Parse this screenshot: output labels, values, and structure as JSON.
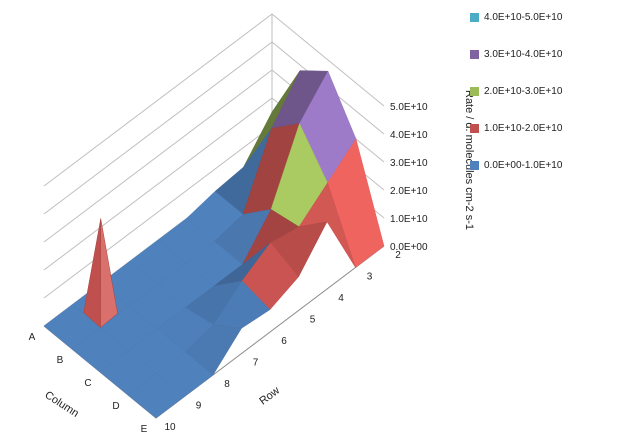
{
  "chart_data": {
    "type": "surface",
    "zlabel": "Rate / d. molecules cm-2 s-1",
    "xlabel": "Column",
    "ylabel": "Row",
    "columns": [
      "A",
      "B",
      "C",
      "D",
      "E"
    ],
    "rows": [
      "2",
      "3",
      "4",
      "5",
      "6",
      "7",
      "8",
      "9",
      "10"
    ],
    "z_ticks": [
      "0.0E+00",
      "1.0E+10",
      "2.0E+10",
      "3.0E+10",
      "4.0E+10",
      "5.0E+10"
    ],
    "zlim": [
      0,
      50000000000
    ],
    "grid": true,
    "legend_position": "right",
    "legend": [
      {
        "label": "4.0E+10-5.0E+10",
        "color": "#4bacc6"
      },
      {
        "label": "3.0E+10-4.0E+10",
        "color": "#8064a2"
      },
      {
        "label": "2.0E+10-3.0E+10",
        "color": "#9bbb59"
      },
      {
        "label": "1.0E+10-2.0E+10",
        "color": "#c0504d"
      },
      {
        "label": "0.0E+00-1.0E+10",
        "color": "#4f81bd"
      }
    ],
    "values_units": "1e10 molecules cm-2 s-1",
    "values": [
      [
        1.5,
        0.3,
        0.2,
        0.0,
        0.0,
        0.0,
        0.0,
        0.0,
        0.0
      ],
      [
        3.8,
        2.5,
        0.2,
        0.0,
        0.0,
        0.0,
        0.0,
        0.0,
        0.0
      ],
      [
        4.6,
        3.5,
        1.2,
        0.0,
        0.0,
        0.0,
        0.0,
        0.0,
        0.0
      ],
      [
        3.0,
        2.2,
        1.4,
        1.6,
        1.0,
        0.2,
        0.0,
        0.0,
        0.0
      ],
      [
        0.0,
        0.0,
        2.4,
        1.2,
        0.8,
        0.9,
        0.0,
        0.0,
        0.0
      ]
    ],
    "spike": {
      "column": "A",
      "row": "8",
      "value": 3.1
    }
  }
}
